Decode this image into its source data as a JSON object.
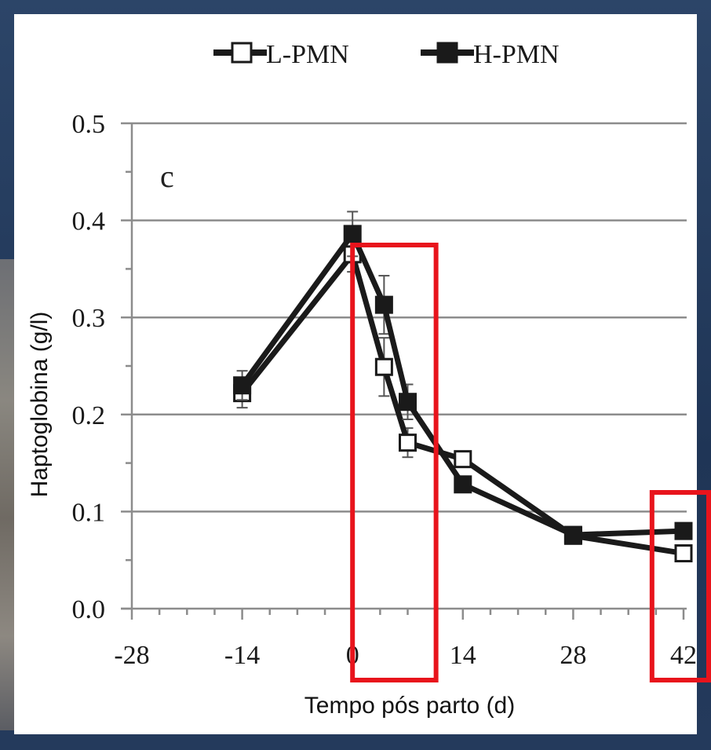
{
  "chart_data": {
    "type": "line",
    "panel_label": "c",
    "xlabel": "Tempo pós parto (d)",
    "ylabel": "Haptoglobina (g/l)",
    "xlim": [
      -28,
      42
    ],
    "ylim": [
      0.0,
      0.5
    ],
    "x_ticks": [
      "-28",
      "-14",
      "0",
      "14",
      "28",
      "42"
    ],
    "y_ticks": [
      "0.0",
      "0.1",
      "0.2",
      "0.3",
      "0.4",
      "0.5"
    ],
    "grid": true,
    "legend_position": "top-center",
    "series": [
      {
        "name": "L-PMN",
        "marker": "open-square",
        "color": "#1a1a1a",
        "x": [
          -14,
          0,
          4,
          7,
          14,
          28,
          42
        ],
        "y": [
          0.222,
          0.365,
          0.249,
          0.171,
          0.154,
          0.075,
          0.057
        ],
        "error": [
          0.015,
          0.018,
          0.03,
          0.015,
          0.0,
          0.0,
          0.0
        ]
      },
      {
        "name": "H-PMN",
        "marker": "filled-square",
        "color": "#1a1a1a",
        "x": [
          -14,
          0,
          4,
          7,
          14,
          28,
          42
        ],
        "y": [
          0.23,
          0.386,
          0.313,
          0.213,
          0.128,
          0.076,
          0.08
        ],
        "error": [
          0.015,
          0.023,
          0.03,
          0.018,
          0.0,
          0.0,
          0.0
        ]
      }
    ],
    "highlight_boxes": [
      {
        "x_range": [
          0,
          10
        ],
        "color": "#e8141c"
      },
      {
        "x_range": [
          38,
          42
        ],
        "color": "#e8141c"
      }
    ]
  }
}
